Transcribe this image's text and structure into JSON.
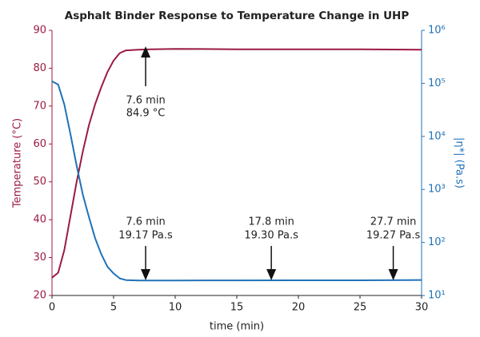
{
  "chart_data": {
    "type": "line",
    "title": "Asphalt Binder Response to Temperature Change in UHP",
    "xlabel": "time (min)",
    "ylabel": "Temperature (°C)",
    "y2label": "|η*| (Pa.s)",
    "x": [
      0,
      0.5,
      1,
      1.5,
      2,
      2.5,
      3,
      3.5,
      4,
      4.5,
      5,
      5.5,
      6,
      7,
      8,
      10,
      15,
      20,
      25,
      30
    ],
    "series": [
      {
        "name": "Temperature",
        "color": "#9b1b42",
        "axis": "y",
        "values": [
          24.7,
          26,
          32,
          41,
          50,
          58,
          65,
          70.5,
          75,
          79,
          82,
          84,
          84.7,
          84.9,
          85,
          85.1,
          85,
          85,
          85,
          84.9
        ]
      },
      {
        "name": "|η*|",
        "color": "#1f72b8",
        "axis": "y2",
        "values": [
          110000,
          95000,
          40000,
          11000,
          2800,
          800,
          300,
          120,
          60,
          35,
          26,
          21,
          19.5,
          19.2,
          19.17,
          19.17,
          19.25,
          19.3,
          19.3,
          19.6
        ]
      }
    ],
    "xlim": [
      0,
      30
    ],
    "xticks": [
      0,
      5,
      10,
      15,
      20,
      25,
      30
    ],
    "ylim": [
      20,
      90
    ],
    "yticks": [
      20,
      30,
      40,
      50,
      60,
      70,
      80,
      90
    ],
    "y2lim": [
      10,
      1000000
    ],
    "y2scale": "log",
    "y2ticks": [
      {
        "value": 10,
        "label": "10¹"
      },
      {
        "value": 100,
        "label": "10²"
      },
      {
        "value": 1000,
        "label": "10³"
      },
      {
        "value": 10000,
        "label": "10⁴"
      },
      {
        "value": 100000,
        "label": "10⁵"
      },
      {
        "value": 1000000,
        "label": "10⁶"
      }
    ],
    "annotations": [
      {
        "x": 7.6,
        "arrow": "up",
        "lines": [
          "7.6 min",
          "84.9 °C"
        ]
      },
      {
        "x": 7.6,
        "arrow": "down",
        "lines": [
          "7.6 min",
          "19.17 Pa.s"
        ]
      },
      {
        "x": 17.8,
        "arrow": "down",
        "lines": [
          "17.8 min",
          "19.30 Pa.s"
        ]
      },
      {
        "x": 27.7,
        "arrow": "down",
        "lines": [
          "27.7 min",
          "19.27 Pa.s"
        ]
      }
    ]
  }
}
